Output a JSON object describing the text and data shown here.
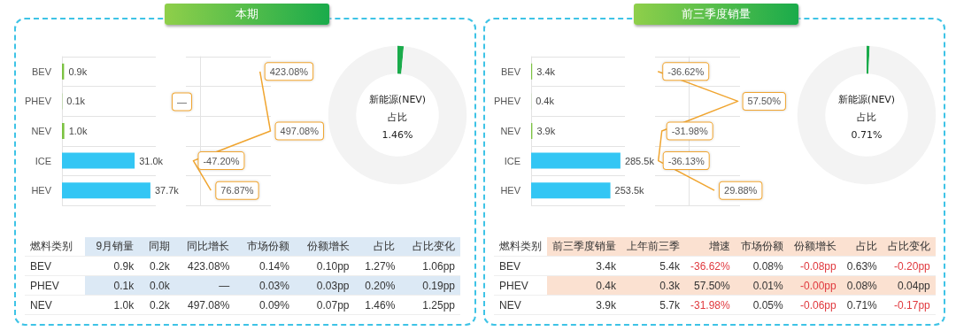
{
  "chart_data": [
    {
      "type": "other",
      "title": "本期"
    },
    {
      "type": "bar",
      "orientation": "horizontal",
      "categories": [
        "BEV",
        "PHEV",
        "NEV",
        "ICE",
        "HEV"
      ],
      "values": [
        0.9,
        0.1,
        1.0,
        31.0,
        37.7
      ],
      "colors": [
        "#7cc242",
        "#7cc242",
        "#7cc242",
        "#33c6f4",
        "#33c6f4"
      ],
      "value_labels": [
        "0.9k",
        "0.1k",
        "1.0k",
        "31.0k",
        "37.7k"
      ],
      "grid": "y",
      "tick_labels": "y"
    },
    {
      "type": "line",
      "orientation": "horizontal",
      "values": [
        423.08,
        null,
        497.08,
        -47.2,
        76.87
      ],
      "color": "#f0a530",
      "value_labels": [
        "423.08%",
        null,
        "497.08%",
        "-47.20%",
        "76.87%"
      ],
      "annotations": [
        "—"
      ],
      "marker": "none",
      "grid": "y",
      "tick_labels": false
    },
    {
      "type": "donut",
      "categories": [
        null,
        null
      ],
      "values": [
        1.46,
        98.54
      ],
      "colors": [
        "#1aab4b",
        "#f3f3f3"
      ],
      "annotations": [
        "新能源(NEV)",
        "占比",
        "1.46%"
      ]
    },
    {
      "type": "other",
      "color": "#dce9f5",
      "categories": [
        "燃料类别",
        "9月销量",
        "同期",
        "同比增长",
        "市场份额",
        "份额增长",
        "占比",
        "占比变化"
      ],
      "y_categories": [
        "BEV",
        "PHEV",
        "NEV"
      ],
      "cell_labels": [
        [
          "0.9k",
          "0.2k",
          "423.08%",
          "0.14%",
          "0.10pp",
          "1.27%",
          "1.06pp"
        ],
        [
          "0.1k",
          "0.0k",
          "—",
          "0.03%",
          "0.03pp",
          "0.20%",
          "0.19pp"
        ],
        [
          "1.0k",
          "0.2k",
          "497.08%",
          "0.09%",
          "0.07pp",
          "1.46%",
          "1.25pp"
        ]
      ]
    },
    {
      "type": "other",
      "title": "前三季度销量"
    },
    {
      "type": "bar",
      "orientation": "horizontal",
      "categories": [
        "BEV",
        "PHEV",
        "NEV",
        "ICE",
        "HEV"
      ],
      "values": [
        3.4,
        0.4,
        3.9,
        285.5,
        253.5
      ],
      "colors": [
        "#7cc242",
        "#7cc242",
        "#7cc242",
        "#33c6f4",
        "#33c6f4"
      ],
      "value_labels": [
        "3.4k",
        "0.4k",
        "3.9k",
        "285.5k",
        "253.5k"
      ],
      "grid": "y",
      "tick_labels": "y"
    },
    {
      "type": "line",
      "orientation": "horizontal",
      "values": [
        -36.62,
        57.5,
        -31.98,
        -36.13,
        29.88
      ],
      "color": "#f0a530",
      "value_labels": [
        "-36.62%",
        "57.50%",
        "-31.98%",
        "-36.13%",
        "29.88%"
      ],
      "marker": "none",
      "grid": "y",
      "tick_labels": false
    },
    {
      "type": "donut",
      "categories": [
        null,
        null
      ],
      "values": [
        0.71,
        99.29
      ],
      "colors": [
        "#1aab4b",
        "#f3f3f3"
      ],
      "annotations": [
        "新能源(NEV)",
        "占比",
        "0.71%"
      ]
    },
    {
      "type": "other",
      "color": "#fbe1d1",
      "categories": [
        "燃料类别",
        "前三季度销量",
        "上年前三季",
        "增速",
        "市场份额",
        "份额增长",
        "占比",
        "占比变化"
      ],
      "y_categories": [
        "BEV",
        "PHEV",
        "NEV"
      ],
      "cell_labels": [
        [
          "3.4k",
          "5.4k",
          "-36.62%",
          "0.08%",
          "-0.08pp",
          "0.63%",
          "-0.20pp"
        ],
        [
          "0.4k",
          "0.3k",
          "57.50%",
          "0.01%",
          "-0.00pp",
          "0.08%",
          "0.04pp"
        ],
        [
          "3.9k",
          "5.7k",
          "-31.98%",
          "0.05%",
          "-0.06pp",
          "0.71%",
          "-0.17pp"
        ]
      ]
    }
  ]
}
